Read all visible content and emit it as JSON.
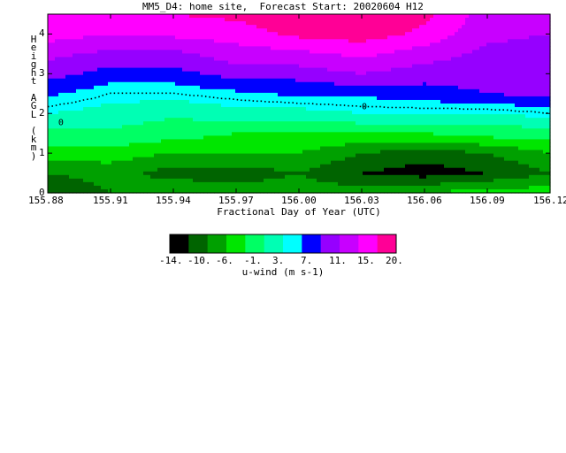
{
  "title": "MM5_D4: home site,  Forecast Start: 20020604 H12",
  "chart_data": {
    "type": "heatmap",
    "title": "MM5_D4: home site,  Forecast Start: 20020604 H12",
    "xlabel": "Fractional Day of Year (UTC)",
    "ylabel": "Height AGL (km)",
    "x_ticks": [
      "155.88",
      "155.91",
      "155.94",
      "155.97",
      "156.00",
      "156.03",
      "156.06",
      "156.09",
      "156.12"
    ],
    "y_ticks": [
      "0",
      "1",
      "2",
      "3",
      "4"
    ],
    "xlim": [
      155.88,
      156.12
    ],
    "ylim": [
      0,
      4.5
    ],
    "zero_contour_label": "0",
    "colorbar": {
      "label": "u-wind (m s-1)",
      "tick_labels": [
        "-14.",
        "-10.",
        "-6.",
        "-1.",
        "3.",
        "7.",
        "11.",
        "15.",
        "20."
      ],
      "colors": [
        "#000000",
        "#006400",
        "#00a000",
        "#00e600",
        "#00ff64",
        "#00ffb4",
        "#00ffff",
        "#0000ff",
        "#9600ff",
        "#c800ff",
        "#ff00ff",
        "#ff0096"
      ]
    },
    "x": [
      155.88,
      155.91,
      155.94,
      155.97,
      156.0,
      156.03,
      156.06,
      156.09,
      156.12
    ],
    "heights": [
      0,
      0.5,
      1.0,
      1.5,
      2.0,
      2.5,
      3.0,
      3.5,
      4.0,
      4.5
    ],
    "u_wind": [
      [
        -12,
        -10,
        -8,
        -9,
        -9,
        -9,
        -8,
        -7,
        -7
      ],
      [
        -10,
        -9,
        -11,
        -11,
        -10,
        -12,
        -13,
        -12,
        -10
      ],
      [
        -7,
        -7,
        -8,
        -8,
        -8,
        -10,
        -11,
        -10,
        -8
      ],
      [
        -4,
        -4,
        -5,
        -6,
        -6,
        -6,
        -6,
        -5,
        -5
      ],
      [
        -1,
        -2,
        -3,
        -2,
        -2,
        -1,
        -1,
        -1,
        0
      ],
      [
        2,
        0,
        0,
        1,
        2,
        2,
        3,
        4,
        5
      ],
      [
        5,
        3,
        3,
        5,
        5,
        7,
        5,
        5,
        4
      ],
      [
        8,
        6,
        6,
        9,
        10,
        12,
        9,
        6,
        5
      ],
      [
        13,
        11,
        12,
        13,
        16,
        17,
        14,
        8,
        7
      ],
      [
        15,
        14,
        15,
        16,
        18,
        18,
        16,
        9,
        8
      ]
    ]
  }
}
